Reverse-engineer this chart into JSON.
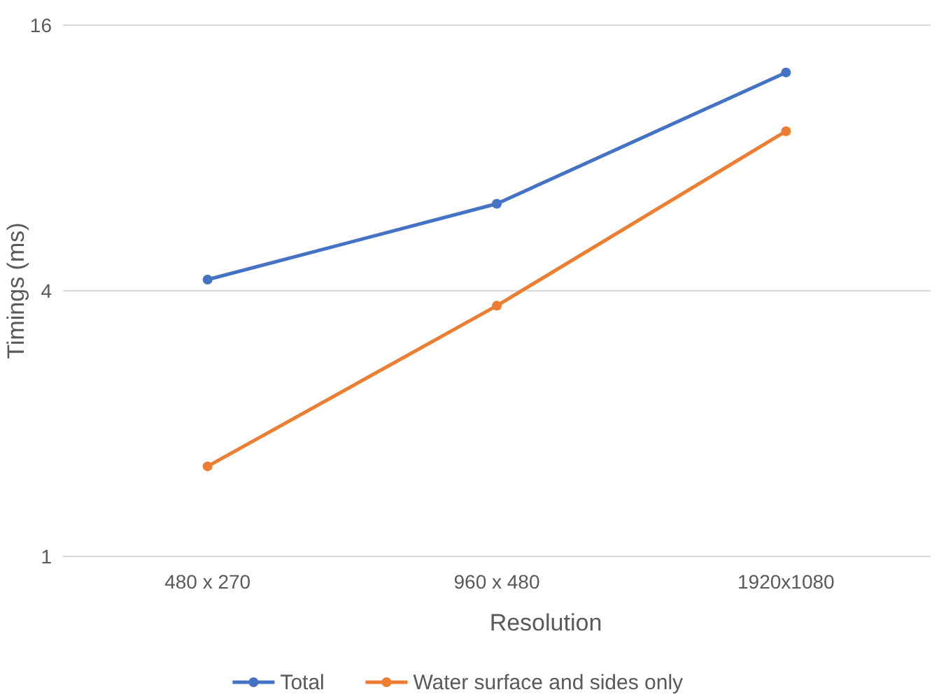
{
  "chart_data": {
    "type": "line",
    "xlabel": "Resolution",
    "ylabel": "Timings (ms)",
    "categories": [
      "480 x 270",
      "960 x 480",
      "1920x1080"
    ],
    "series": [
      {
        "name": "Total",
        "color": "#4472c4",
        "values": [
          4.24,
          6.3,
          12.5
        ]
      },
      {
        "name": "Water surface and sides only",
        "color": "#ed7d31",
        "values": [
          1.6,
          3.7,
          9.2
        ]
      }
    ],
    "log": true,
    "ylim": [
      1,
      16
    ],
    "yticks": [
      1,
      4,
      16
    ],
    "grid": "y",
    "legend": "bottom",
    "marker": "circle",
    "line_style": "solid"
  }
}
